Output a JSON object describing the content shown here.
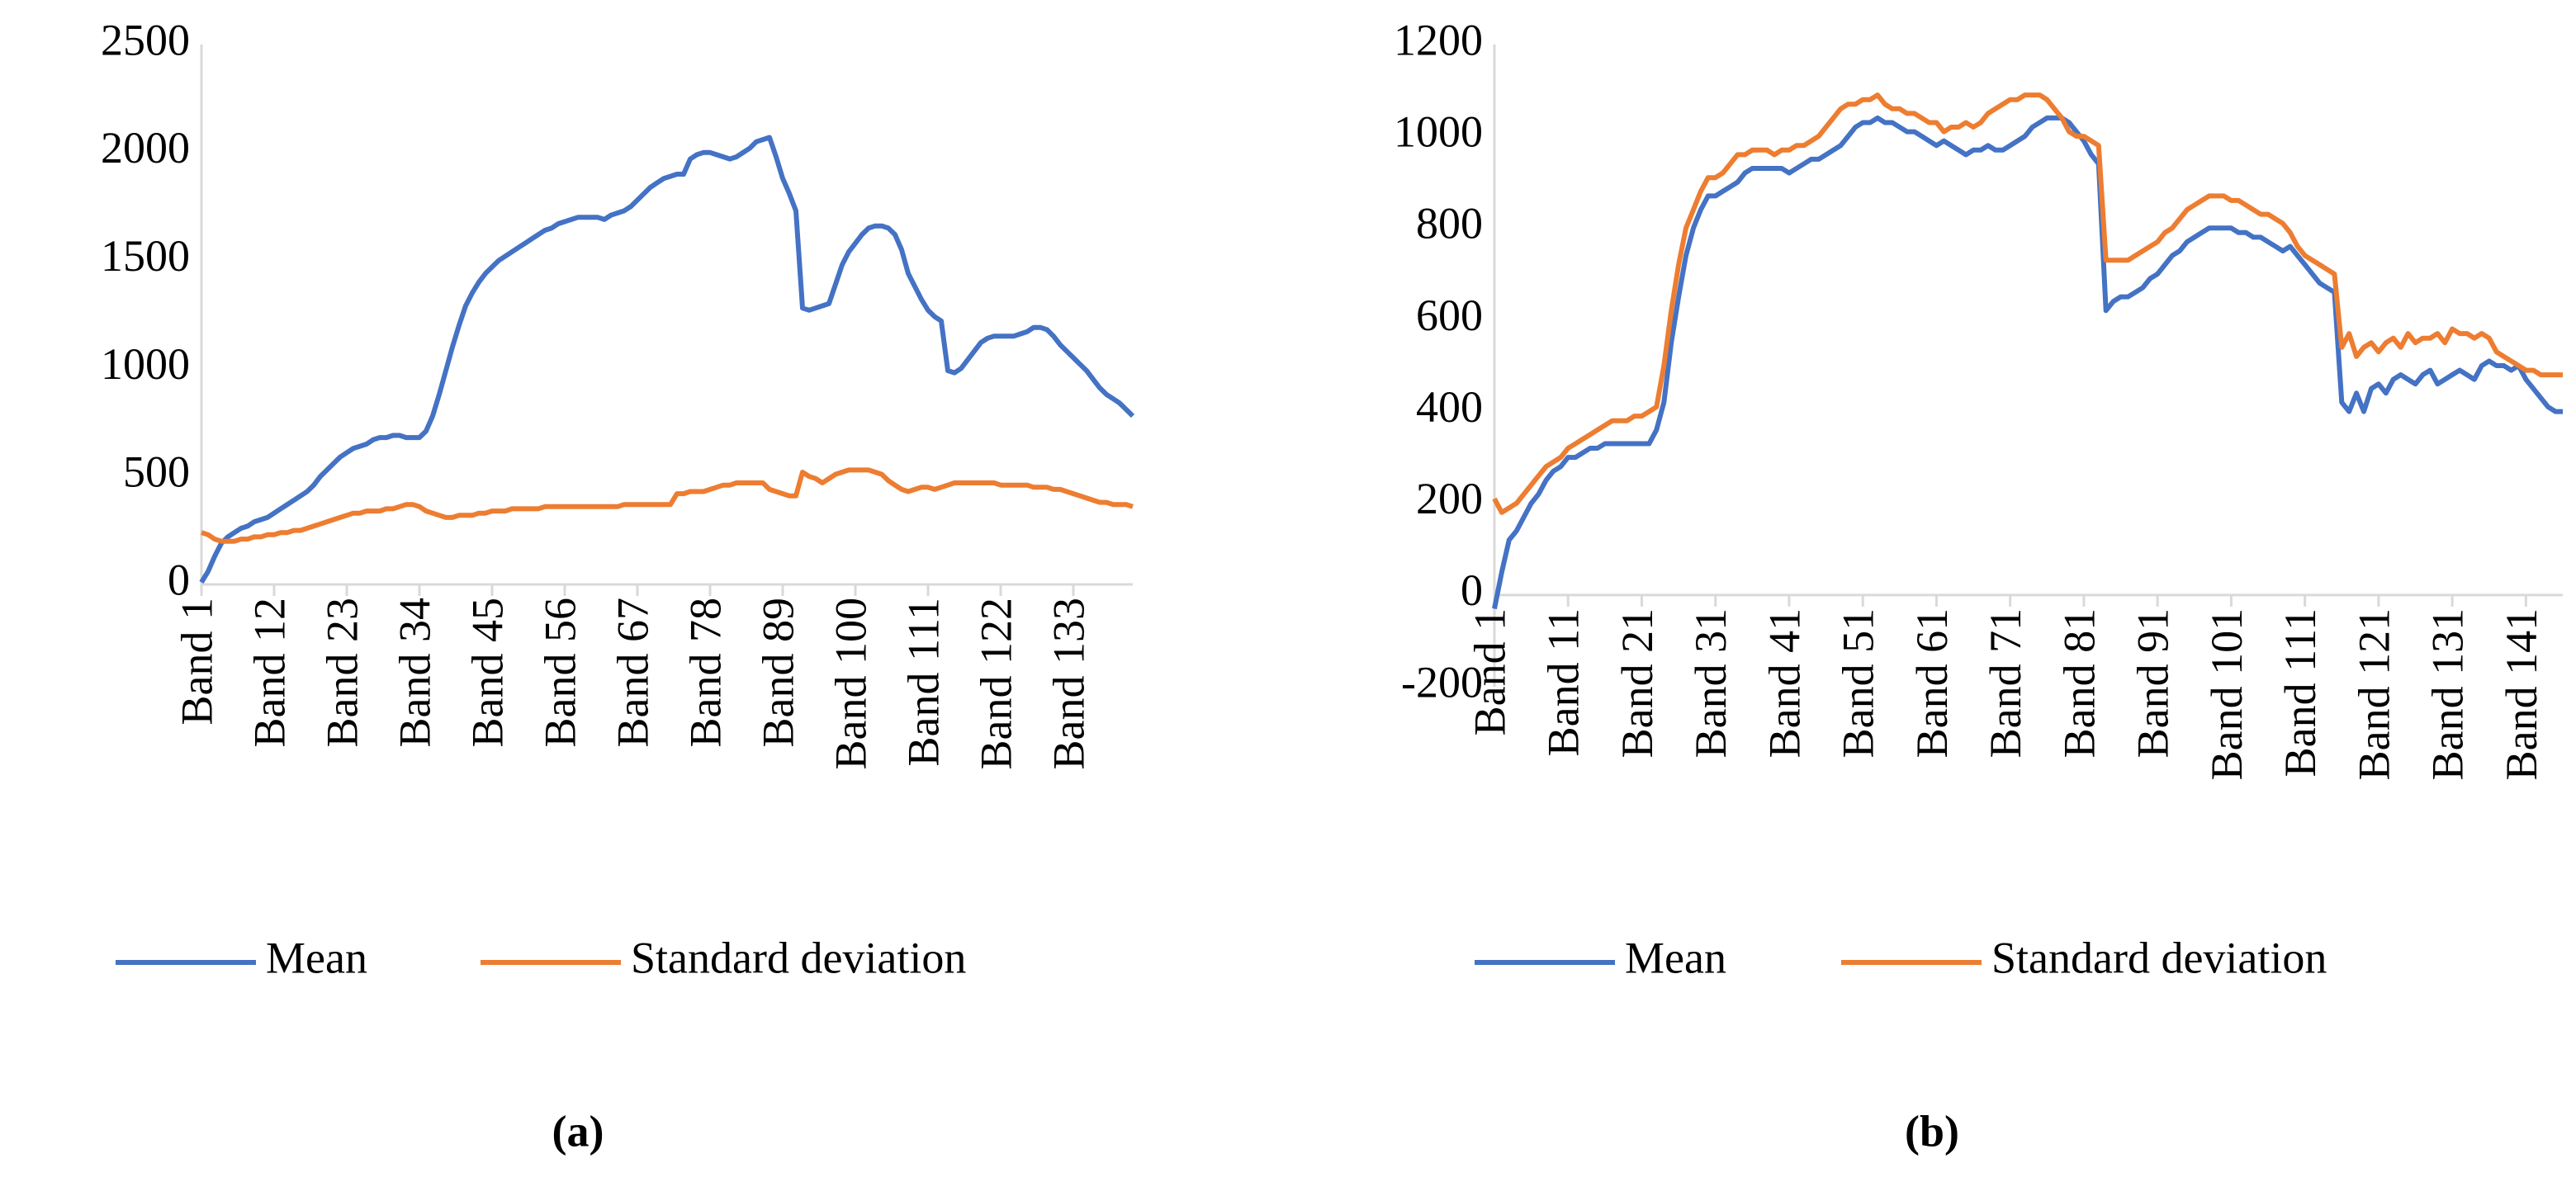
{
  "chart_data": [
    {
      "type": "line",
      "panel_label": "(a)",
      "legend": "bottom",
      "categories": [
        "Band 1",
        null,
        null,
        null,
        null,
        null,
        null,
        null,
        null,
        null,
        null,
        "Band 12",
        null,
        null,
        null,
        null,
        null,
        null,
        null,
        null,
        null,
        null,
        "Band 23",
        null,
        null,
        null,
        null,
        null,
        null,
        null,
        null,
        null,
        null,
        "Band 34",
        null,
        null,
        null,
        null,
        null,
        null,
        null,
        null,
        null,
        null,
        "Band 45",
        null,
        null,
        null,
        null,
        null,
        null,
        null,
        null,
        null,
        null,
        "Band 56",
        null,
        null,
        null,
        null,
        null,
        null,
        null,
        null,
        null,
        null,
        "Band 67",
        null,
        null,
        null,
        null,
        null,
        null,
        null,
        null,
        null,
        null,
        "Band 78",
        null,
        null,
        null,
        null,
        null,
        null,
        null,
        null,
        null,
        null,
        "Band 89",
        null,
        null,
        null,
        null,
        null,
        null,
        null,
        null,
        null,
        null,
        "Band 100",
        null,
        null,
        null,
        null,
        null,
        null,
        null,
        null,
        null,
        null,
        "Band 111",
        null,
        null,
        null,
        null,
        null,
        null,
        null,
        null,
        null,
        null,
        "Band 122",
        null,
        null,
        null,
        null,
        null,
        null,
        null,
        null,
        null,
        null,
        "Band 133",
        null,
        null,
        null,
        null,
        null,
        null,
        null,
        null,
        null
      ],
      "series": [
        {
          "name": "Mean",
          "color": "#4472c4",
          "values": [
            10,
            60,
            130,
            190,
            220,
            240,
            260,
            270,
            290,
            300,
            310,
            330,
            350,
            370,
            390,
            410,
            430,
            460,
            500,
            530,
            560,
            590,
            610,
            630,
            640,
            650,
            670,
            680,
            680,
            690,
            690,
            680,
            680,
            680,
            710,
            780,
            880,
            990,
            1100,
            1200,
            1290,
            1350,
            1400,
            1440,
            1470,
            1500,
            1520,
            1540,
            1560,
            1580,
            1600,
            1620,
            1640,
            1650,
            1670,
            1680,
            1690,
            1700,
            1700,
            1700,
            1700,
            1690,
            1710,
            1720,
            1730,
            1750,
            1780,
            1810,
            1840,
            1860,
            1880,
            1890,
            1900,
            1900,
            1970,
            1990,
            2000,
            2000,
            1990,
            1980,
            1970,
            1980,
            2000,
            2020,
            2050,
            2060,
            2070,
            1980,
            1880,
            1810,
            1730,
            1280,
            1270,
            1280,
            1290,
            1300,
            1390,
            1480,
            1540,
            1580,
            1620,
            1650,
            1660,
            1660,
            1650,
            1620,
            1550,
            1440,
            1380,
            1320,
            1270,
            1240,
            1220,
            990,
            980,
            1000,
            1040,
            1080,
            1120,
            1140,
            1150,
            1150,
            1150,
            1150,
            1160,
            1170,
            1190,
            1190,
            1180,
            1150,
            1110,
            1080,
            1050,
            1020,
            990,
            950,
            910,
            880,
            860,
            840,
            810,
            780
          ]
        },
        {
          "name": "Standard deviation",
          "color": "#ed7d31",
          "values": [
            240,
            230,
            210,
            200,
            200,
            200,
            210,
            210,
            220,
            220,
            230,
            230,
            240,
            240,
            250,
            250,
            260,
            270,
            280,
            290,
            300,
            310,
            320,
            330,
            330,
            340,
            340,
            340,
            350,
            350,
            360,
            370,
            370,
            360,
            340,
            330,
            320,
            310,
            310,
            320,
            320,
            320,
            330,
            330,
            340,
            340,
            340,
            350,
            350,
            350,
            350,
            350,
            360,
            360,
            360,
            360,
            360,
            360,
            360,
            360,
            360,
            360,
            360,
            360,
            370,
            370,
            370,
            370,
            370,
            370,
            370,
            370,
            420,
            420,
            430,
            430,
            430,
            440,
            450,
            460,
            460,
            470,
            470,
            470,
            470,
            470,
            440,
            430,
            420,
            410,
            410,
            520,
            500,
            490,
            470,
            490,
            510,
            520,
            530,
            530,
            530,
            530,
            520,
            510,
            480,
            460,
            440,
            430,
            440,
            450,
            450,
            440,
            450,
            460,
            470,
            470,
            470,
            470,
            470,
            470,
            470,
            460,
            460,
            460,
            460,
            460,
            450,
            450,
            450,
            440,
            440,
            430,
            420,
            410,
            400,
            390,
            380,
            380,
            370,
            370,
            370,
            360
          ]
        }
      ],
      "ylim": [
        0,
        2500
      ],
      "yticks": [
        0,
        500,
        1000,
        1500,
        2000,
        2500
      ]
    },
    {
      "type": "line",
      "panel_label": "(b)",
      "legend": "bottom",
      "categories": [
        "Band 1",
        null,
        null,
        null,
        null,
        null,
        null,
        null,
        null,
        null,
        "Band 11",
        null,
        null,
        null,
        null,
        null,
        null,
        null,
        null,
        null,
        "Band 21",
        null,
        null,
        null,
        null,
        null,
        null,
        null,
        null,
        null,
        "Band 31",
        null,
        null,
        null,
        null,
        null,
        null,
        null,
        null,
        null,
        "Band 41",
        null,
        null,
        null,
        null,
        null,
        null,
        null,
        null,
        null,
        "Band 51",
        null,
        null,
        null,
        null,
        null,
        null,
        null,
        null,
        null,
        "Band 61",
        null,
        null,
        null,
        null,
        null,
        null,
        null,
        null,
        null,
        "Band 71",
        null,
        null,
        null,
        null,
        null,
        null,
        null,
        null,
        null,
        "Band 81",
        null,
        null,
        null,
        null,
        null,
        null,
        null,
        null,
        null,
        "Band 91",
        null,
        null,
        null,
        null,
        null,
        null,
        null,
        null,
        null,
        "Band 101",
        null,
        null,
        null,
        null,
        null,
        null,
        null,
        null,
        null,
        "Band 111",
        null,
        null,
        null,
        null,
        null,
        null,
        null,
        null,
        null,
        "Band 121",
        null,
        null,
        null,
        null,
        null,
        null,
        null,
        null,
        null,
        "Band 131",
        null,
        null,
        null,
        null,
        null,
        null,
        null,
        null,
        null,
        "Band 141",
        null,
        null,
        null,
        null,
        null
      ],
      "series": [
        {
          "name": "Mean",
          "color": "#4472c4",
          "values": [
            -30,
            50,
            120,
            140,
            170,
            200,
            220,
            250,
            270,
            280,
            300,
            300,
            310,
            320,
            320,
            330,
            330,
            330,
            330,
            330,
            330,
            330,
            360,
            420,
            550,
            650,
            740,
            800,
            840,
            870,
            870,
            880,
            890,
            900,
            920,
            930,
            930,
            930,
            930,
            930,
            920,
            930,
            940,
            950,
            950,
            960,
            970,
            980,
            1000,
            1020,
            1030,
            1030,
            1040,
            1030,
            1030,
            1020,
            1010,
            1010,
            1000,
            990,
            980,
            990,
            980,
            970,
            960,
            970,
            970,
            980,
            970,
            970,
            980,
            990,
            1000,
            1020,
            1030,
            1040,
            1040,
            1040,
            1030,
            1010,
            990,
            960,
            940,
            620,
            640,
            650,
            650,
            660,
            670,
            690,
            700,
            720,
            740,
            750,
            770,
            780,
            790,
            800,
            800,
            800,
            800,
            790,
            790,
            780,
            780,
            770,
            760,
            750,
            760,
            740,
            720,
            700,
            680,
            670,
            660,
            420,
            400,
            440,
            400,
            450,
            460,
            440,
            470,
            480,
            470,
            460,
            480,
            490,
            460,
            470,
            480,
            490,
            480,
            470,
            500,
            510,
            500,
            500,
            490,
            500,
            470,
            450,
            430,
            410,
            400,
            400
          ]
        },
        {
          "name": "Standard deviation",
          "color": "#ed7d31",
          "values": [
            210,
            180,
            190,
            200,
            220,
            240,
            260,
            280,
            290,
            300,
            320,
            330,
            340,
            350,
            360,
            370,
            380,
            380,
            380,
            390,
            390,
            400,
            410,
            500,
            620,
            720,
            800,
            840,
            880,
            910,
            910,
            920,
            940,
            960,
            960,
            970,
            970,
            970,
            960,
            970,
            970,
            980,
            980,
            990,
            1000,
            1020,
            1040,
            1060,
            1070,
            1070,
            1080,
            1080,
            1090,
            1070,
            1060,
            1060,
            1050,
            1050,
            1040,
            1030,
            1030,
            1010,
            1020,
            1020,
            1030,
            1020,
            1030,
            1050,
            1060,
            1070,
            1080,
            1080,
            1090,
            1090,
            1090,
            1080,
            1060,
            1040,
            1010,
            1000,
            1000,
            990,
            980,
            730,
            730,
            730,
            730,
            740,
            750,
            760,
            770,
            790,
            800,
            820,
            840,
            850,
            860,
            870,
            870,
            870,
            860,
            860,
            850,
            840,
            830,
            830,
            820,
            810,
            790,
            760,
            740,
            730,
            720,
            710,
            700,
            540,
            570,
            520,
            540,
            550,
            530,
            550,
            560,
            540,
            570,
            550,
            560,
            560,
            570,
            550,
            580,
            570,
            570,
            560,
            570,
            560,
            530,
            520,
            510,
            500,
            490,
            490,
            480,
            480,
            480,
            480
          ]
        }
      ],
      "ylim": [
        -200,
        1200
      ],
      "yticks": [
        -200,
        0,
        200,
        400,
        600,
        800,
        1000,
        1200
      ]
    }
  ]
}
